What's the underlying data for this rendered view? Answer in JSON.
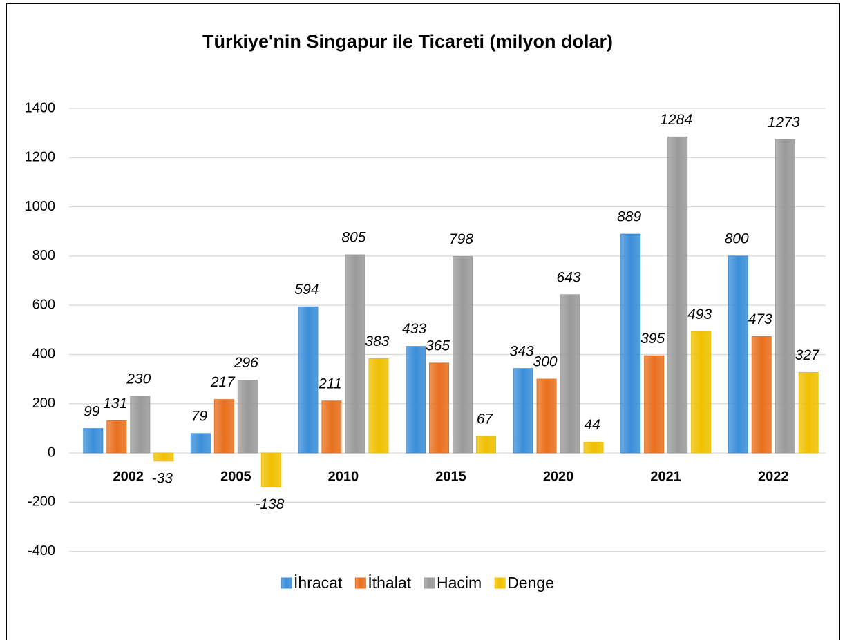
{
  "chart_data": {
    "type": "bar",
    "title": "Türkiye'nin Singapur ile Ticareti (milyon dolar)",
    "categories": [
      "2002",
      "2005",
      "2010",
      "2015",
      "2020",
      "2021",
      "2022"
    ],
    "series": [
      {
        "name": "İhracat",
        "color": "#3b8ed8",
        "values": [
          99,
          79,
          594,
          433,
          343,
          889,
          800
        ]
      },
      {
        "name": "İthalat",
        "color": "#e8701e",
        "values": [
          131,
          217,
          211,
          365,
          300,
          395,
          473
        ]
      },
      {
        "name": "Hacim",
        "color": "#9a9a9a",
        "values": [
          230,
          296,
          805,
          798,
          643,
          1284,
          1273
        ]
      },
      {
        "name": "Denge",
        "color": "#f0c000",
        "values": [
          -33,
          -138,
          383,
          67,
          44,
          493,
          327
        ]
      }
    ],
    "ylim": [
      -400,
      1400
    ],
    "yticks": [
      -400,
      -200,
      0,
      200,
      400,
      600,
      800,
      1000,
      1200,
      1400
    ],
    "grid": true,
    "legend": "bottom"
  }
}
